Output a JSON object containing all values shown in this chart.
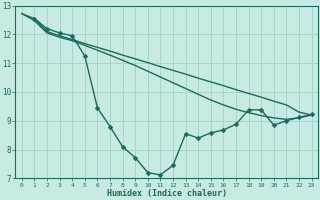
{
  "xlabel": "Humidex (Indice chaleur)",
  "xlim": [
    -0.5,
    23.5
  ],
  "ylim": [
    7,
    13
  ],
  "xticks": [
    0,
    1,
    2,
    3,
    4,
    5,
    6,
    7,
    8,
    9,
    10,
    11,
    12,
    13,
    14,
    15,
    16,
    17,
    18,
    19,
    20,
    21,
    22,
    23
  ],
  "yticks": [
    7,
    8,
    9,
    10,
    11,
    12,
    13
  ],
  "background_color": "#c8eae4",
  "grid_color": "#a8d4cc",
  "line_color": "#1a6b5a",
  "line1_x": [
    0,
    1,
    2,
    3,
    4,
    5,
    6,
    7,
    8,
    9,
    10,
    11,
    12,
    13,
    14,
    15,
    16,
    17,
    18,
    19,
    20,
    21,
    22,
    23
  ],
  "line1_y": [
    12.72,
    12.55,
    12.1,
    11.95,
    11.82,
    11.68,
    11.55,
    11.42,
    11.28,
    11.15,
    11.02,
    10.88,
    10.75,
    10.62,
    10.48,
    10.35,
    10.22,
    10.08,
    9.95,
    9.82,
    9.68,
    9.55,
    9.3,
    9.2
  ],
  "line2_x": [
    0,
    1,
    2,
    3,
    4,
    5,
    6,
    7,
    8,
    9,
    10,
    11,
    12,
    13,
    14,
    15,
    16,
    17,
    18,
    19,
    20,
    21,
    22,
    23
  ],
  "line2_y": [
    12.72,
    12.48,
    12.05,
    11.9,
    11.78,
    11.62,
    11.45,
    11.28,
    11.1,
    10.92,
    10.72,
    10.52,
    10.32,
    10.12,
    9.92,
    9.72,
    9.55,
    9.4,
    9.28,
    9.18,
    9.1,
    9.05,
    9.1,
    9.2
  ],
  "line3_x": [
    1,
    2,
    3,
    4,
    5,
    6,
    7,
    8,
    9,
    10,
    11,
    12,
    13,
    14,
    15,
    16,
    17,
    18,
    19,
    20,
    21,
    22,
    23
  ],
  "line3_y": [
    12.55,
    12.2,
    12.05,
    11.95,
    11.25,
    9.45,
    8.8,
    8.1,
    7.72,
    7.2,
    7.12,
    7.45,
    8.55,
    8.4,
    8.58,
    8.68,
    8.88,
    9.38,
    9.38,
    8.85,
    9.0,
    9.12,
    9.22
  ],
  "line3_markers_x": [
    1,
    2,
    3,
    4,
    5,
    6,
    7,
    8,
    9,
    10,
    11,
    12,
    13,
    14,
    15,
    16,
    17,
    18,
    19,
    20,
    21,
    22,
    23
  ],
  "line3_markers_y": [
    12.55,
    12.2,
    12.05,
    11.95,
    11.25,
    9.45,
    8.8,
    8.1,
    7.72,
    7.2,
    7.12,
    7.45,
    8.55,
    8.4,
    8.58,
    8.68,
    8.88,
    9.38,
    9.38,
    8.85,
    9.0,
    9.12,
    9.22
  ]
}
